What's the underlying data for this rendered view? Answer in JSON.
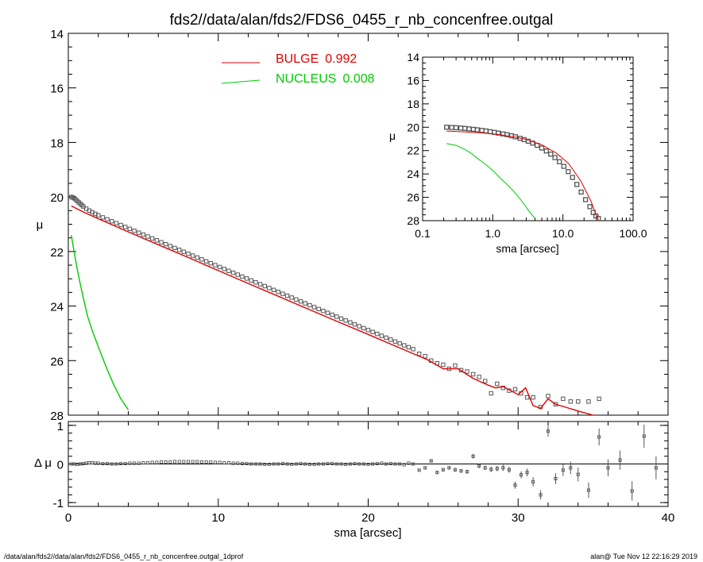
{
  "title": "fds2//data/alan/fds2/FDS6_0455_r_nb_concenfree.outgal",
  "footer_left": "/data/alan/fds2//data/alan/fds2/FDS6_0455_r_nb_concenfree.outgal_1dprof",
  "footer_right": "alan@  Tue Nov 12 22:16:29 2019",
  "colors": {
    "data": "#555555",
    "bulge": "#e00000",
    "nucleus": "#00cc00",
    "axis": "#000000"
  },
  "chart_data": [
    {
      "id": "main-profile",
      "type": "scatter",
      "xlabel": "",
      "ylabel": "μ",
      "xlim": [
        0,
        40
      ],
      "ylim": [
        28,
        14
      ],
      "xticks": [
        0,
        10,
        20,
        30,
        40
      ],
      "xtick_labels_shown": false,
      "yticks": [
        14,
        16,
        18,
        20,
        22,
        24,
        26,
        28
      ],
      "ytick_labels": [
        "14",
        "16",
        "18",
        "20",
        "22",
        "24",
        "26",
        "28"
      ],
      "legend": {
        "placement": "top-center",
        "entries": [
          {
            "name": "BULGE",
            "value": "0.992",
            "color": "#e00000"
          },
          {
            "name": "NUCLEUS",
            "value": "0.008",
            "color": "#00cc00"
          }
        ]
      },
      "series": [
        {
          "name": "data",
          "kind": "points",
          "x": [
            0.2,
            0.3,
            0.4,
            0.5,
            0.6,
            0.7,
            0.8,
            0.9,
            1.0,
            1.2,
            1.4,
            1.6,
            1.8,
            2.0,
            2.3,
            2.6,
            2.9,
            3.2,
            3.5,
            3.8,
            4.1,
            4.4,
            4.7,
            5.0,
            5.3,
            5.6,
            5.9,
            6.2,
            6.5,
            6.8,
            7.1,
            7.4,
            7.7,
            8.0,
            8.3,
            8.6,
            8.9,
            9.2,
            9.5,
            9.8,
            10.1,
            10.4,
            10.7,
            11.0,
            11.3,
            11.6,
            11.9,
            12.2,
            12.5,
            12.8,
            13.1,
            13.4,
            13.7,
            14.0,
            14.3,
            14.6,
            14.9,
            15.2,
            15.5,
            15.8,
            16.1,
            16.4,
            16.7,
            17.0,
            17.3,
            17.6,
            17.9,
            18.2,
            18.5,
            18.8,
            19.1,
            19.4,
            19.7,
            20.0,
            20.3,
            20.6,
            20.9,
            21.2,
            21.5,
            21.8,
            22.1,
            22.4,
            22.7,
            23.0,
            23.4,
            23.8,
            24.2,
            24.6,
            25.0,
            25.4,
            25.8,
            26.2,
            26.6,
            27.0,
            27.4,
            27.8,
            28.2,
            28.6,
            29.0,
            29.4,
            29.8,
            30.2,
            30.6,
            31.0,
            31.5,
            32.0,
            32.5,
            33.0,
            33.5,
            34.0,
            34.7,
            35.4
          ],
          "y": [
            20.0,
            20.02,
            20.05,
            20.1,
            20.15,
            20.2,
            20.25,
            20.3,
            20.35,
            20.43,
            20.5,
            20.56,
            20.62,
            20.67,
            20.75,
            20.82,
            20.89,
            20.96,
            21.03,
            21.1,
            21.17,
            21.24,
            21.31,
            21.38,
            21.45,
            21.52,
            21.59,
            21.66,
            21.73,
            21.8,
            21.87,
            21.94,
            22.01,
            22.08,
            22.15,
            22.22,
            22.29,
            22.36,
            22.43,
            22.5,
            22.57,
            22.64,
            22.71,
            22.78,
            22.85,
            22.92,
            22.99,
            23.06,
            23.13,
            23.2,
            23.27,
            23.34,
            23.41,
            23.48,
            23.55,
            23.62,
            23.69,
            23.76,
            23.83,
            23.9,
            23.97,
            24.04,
            24.11,
            24.18,
            24.25,
            24.32,
            24.39,
            24.46,
            24.53,
            24.6,
            24.67,
            24.74,
            24.81,
            24.88,
            24.95,
            25.02,
            25.09,
            25.16,
            25.23,
            25.3,
            25.37,
            25.44,
            25.51,
            25.58,
            25.75,
            25.84,
            26.0,
            26.1,
            26.15,
            26.3,
            26.18,
            26.35,
            26.4,
            26.5,
            26.6,
            26.75,
            27.2,
            26.85,
            27.0,
            27.1,
            27.05,
            27.2,
            27.35,
            27.35,
            27.7,
            27.3,
            27.6,
            27.4,
            27.5,
            27.5,
            27.5,
            27.4
          ]
        },
        {
          "name": "BULGE",
          "kind": "line",
          "color": "#e00000",
          "x": [
            0.2,
            1,
            2,
            4,
            6,
            8,
            10,
            12,
            14,
            16,
            18,
            20,
            22,
            24,
            25,
            26,
            27,
            28,
            28.5,
            29,
            30,
            30.5,
            31,
            31.5,
            32,
            32.5,
            33,
            34,
            35
          ],
          "y": [
            20.33,
            20.55,
            20.8,
            21.28,
            21.75,
            22.22,
            22.7,
            23.17,
            23.64,
            24.11,
            24.58,
            25.04,
            25.51,
            25.98,
            26.3,
            26.3,
            26.65,
            26.9,
            27.0,
            26.95,
            27.25,
            27.0,
            27.65,
            27.75,
            27.4,
            27.6,
            27.68,
            27.85,
            28.0
          ]
        },
        {
          "name": "NUCLEUS",
          "kind": "line",
          "color": "#00cc00",
          "x": [
            0.2,
            0.4,
            0.6,
            0.8,
            1.0,
            1.3,
            1.6,
            2.0,
            2.5,
            3.0,
            3.5,
            4.0
          ],
          "y": [
            21.4,
            22.05,
            22.65,
            23.2,
            23.7,
            24.4,
            24.9,
            25.5,
            26.2,
            26.85,
            27.4,
            27.8
          ]
        }
      ]
    },
    {
      "id": "inset-logprofile",
      "type": "scatter",
      "xlabel": "sma [arcsec]",
      "ylabel": "μ",
      "xscale": "log",
      "xlim": [
        0.1,
        100
      ],
      "ylim": [
        28,
        14
      ],
      "xticks": [
        0.1,
        1,
        10,
        100
      ],
      "xtick_labels": [
        "0.1",
        "1.0",
        "10.0",
        "100.0"
      ],
      "yticks": [
        14,
        16,
        18,
        20,
        22,
        24,
        26,
        28
      ],
      "ytick_labels": [
        "14",
        "16",
        "18",
        "20",
        "22",
        "24",
        "26",
        "28"
      ],
      "series": [
        {
          "name": "data",
          "kind": "points",
          "x": [
            0.22,
            0.26,
            0.3,
            0.35,
            0.4,
            0.46,
            0.53,
            0.6,
            0.7,
            0.8,
            0.92,
            1.05,
            1.2,
            1.4,
            1.6,
            1.85,
            2.1,
            2.45,
            2.8,
            3.2,
            3.7,
            4.3,
            5.0,
            5.8,
            6.7,
            7.7,
            8.9,
            10.3,
            11.9,
            13.7,
            15.8,
            18.2,
            21.0,
            24.2,
            27.0,
            29.5,
            32.0
          ],
          "y": [
            20.0,
            20.02,
            20.04,
            20.07,
            20.1,
            20.14,
            20.18,
            20.22,
            20.27,
            20.32,
            20.38,
            20.44,
            20.5,
            20.57,
            20.64,
            20.73,
            20.82,
            20.95,
            21.06,
            21.2,
            21.36,
            21.55,
            21.78,
            22.03,
            22.3,
            22.6,
            22.95,
            23.35,
            23.8,
            24.3,
            24.9,
            25.55,
            26.2,
            26.8,
            27.3,
            27.6,
            27.8
          ]
        },
        {
          "name": "BULGE",
          "kind": "line",
          "color": "#e00000",
          "x": [
            0.22,
            0.3,
            0.5,
            0.8,
            1.2,
            2,
            3,
            5,
            8,
            12,
            18,
            25,
            32
          ],
          "y": [
            20.33,
            20.36,
            20.43,
            20.52,
            20.62,
            20.82,
            21.05,
            21.5,
            22.2,
            23.1,
            24.6,
            26.3,
            28.0
          ]
        },
        {
          "name": "NUCLEUS",
          "kind": "line",
          "color": "#00cc00",
          "x": [
            0.22,
            0.3,
            0.4,
            0.5,
            0.6,
            0.8,
            1.0,
            1.3,
            1.6,
            2.0,
            2.5,
            3.0,
            3.5,
            4.0
          ],
          "y": [
            21.4,
            21.55,
            21.9,
            22.25,
            22.65,
            23.2,
            23.7,
            24.4,
            24.9,
            25.5,
            26.2,
            26.85,
            27.4,
            27.8
          ]
        }
      ]
    },
    {
      "id": "residuals",
      "type": "scatter",
      "xlabel": "sma [arcsec]",
      "ylabel": "Δ μ",
      "xlim": [
        0,
        40
      ],
      "ylim": [
        -1.1,
        1.1
      ],
      "xticks": [
        0,
        10,
        20,
        30,
        40
      ],
      "xtick_labels": [
        "0",
        "10",
        "20",
        "30",
        "40"
      ],
      "yticks": [
        -1,
        0,
        1
      ],
      "ytick_labels": [
        "-1",
        "0",
        "1"
      ],
      "zero_line": true,
      "series": [
        {
          "name": "residual",
          "kind": "points_with_errorbars",
          "x": [
            0.2,
            0.4,
            0.6,
            0.8,
            1.0,
            1.2,
            1.4,
            1.6,
            1.8,
            2.0,
            2.3,
            2.6,
            2.9,
            3.2,
            3.5,
            3.8,
            4.1,
            4.4,
            4.7,
            5.0,
            5.3,
            5.6,
            5.9,
            6.2,
            6.5,
            6.8,
            7.1,
            7.4,
            7.7,
            8.0,
            8.3,
            8.6,
            8.9,
            9.2,
            9.5,
            9.8,
            10.1,
            10.4,
            10.7,
            11.0,
            11.3,
            11.6,
            11.9,
            12.2,
            12.5,
            12.8,
            13.1,
            13.4,
            13.7,
            14.0,
            14.3,
            14.6,
            14.9,
            15.2,
            15.5,
            15.8,
            16.1,
            16.4,
            16.7,
            17.0,
            17.3,
            17.6,
            17.9,
            18.2,
            18.5,
            18.8,
            19.1,
            19.4,
            19.7,
            20.0,
            20.3,
            20.6,
            20.9,
            21.2,
            21.5,
            21.8,
            22.1,
            22.4,
            22.7,
            23.0,
            23.4,
            23.8,
            24.2,
            24.6,
            25.0,
            25.4,
            25.8,
            26.2,
            26.6,
            27.0,
            27.4,
            27.8,
            28.2,
            28.6,
            29.0,
            29.4,
            29.8,
            30.2,
            30.6,
            31.0,
            31.5,
            32.0,
            32.5,
            33.0,
            33.5,
            34.0,
            34.7,
            35.4,
            36.0,
            36.8,
            37.6,
            38.4,
            39.2
          ],
          "y": [
            0.0,
            0.0,
            -0.01,
            0.0,
            0.01,
            0.02,
            0.03,
            0.03,
            0.02,
            0.02,
            0.01,
            0.01,
            0.0,
            0.0,
            0.01,
            0.01,
            0.02,
            0.02,
            0.02,
            0.03,
            0.03,
            0.04,
            0.04,
            0.05,
            0.05,
            0.05,
            0.06,
            0.06,
            0.06,
            0.06,
            0.06,
            0.06,
            0.05,
            0.05,
            0.05,
            0.04,
            0.04,
            0.03,
            0.03,
            0.02,
            0.02,
            0.01,
            0.01,
            0.0,
            0.0,
            0.0,
            -0.01,
            -0.01,
            0.0,
            0.0,
            0.01,
            0.0,
            -0.01,
            0.0,
            0.01,
            0.0,
            -0.01,
            -0.01,
            0.0,
            0.0,
            0.01,
            0.01,
            0.0,
            0.0,
            -0.01,
            0.0,
            0.01,
            0.0,
            0.0,
            -0.01,
            0.0,
            0.01,
            0.02,
            0.0,
            0.01,
            0.0,
            0.0,
            -0.02,
            0.02,
            0.0,
            -0.16,
            -0.1,
            0.08,
            -0.22,
            -0.15,
            -0.1,
            -0.15,
            -0.18,
            -0.2,
            0.2,
            -0.05,
            -0.1,
            -0.14,
            -0.12,
            -0.1,
            -0.15,
            -0.55,
            -0.28,
            -0.22,
            -0.46,
            -0.8,
            0.85,
            -0.38,
            -0.16,
            -0.1,
            -0.27,
            -0.68,
            0.7,
            -0.1,
            0.1,
            -0.7,
            0.72,
            -0.1
          ],
          "err": [
            0.0,
            0.0,
            0.0,
            0.0,
            0.0,
            0.0,
            0.0,
            0.0,
            0.0,
            0.0,
            0.0,
            0.0,
            0.0,
            0.0,
            0.0,
            0.0,
            0.0,
            0.0,
            0.0,
            0.0,
            0.0,
            0.0,
            0.0,
            0.0,
            0.0,
            0.0,
            0.0,
            0.0,
            0.0,
            0.0,
            0.0,
            0.0,
            0.0,
            0.0,
            0.0,
            0.0,
            0.0,
            0.0,
            0.0,
            0.0,
            0.0,
            0.0,
            0.0,
            0.0,
            0.0,
            0.0,
            0.0,
            0.0,
            0.0,
            0.0,
            0.0,
            0.0,
            0.0,
            0.0,
            0.0,
            0.0,
            0.0,
            0.0,
            0.0,
            0.0,
            0.0,
            0.0,
            0.0,
            0.0,
            0.0,
            0.0,
            0.0,
            0.0,
            0.0,
            0.0,
            0.0,
            0.0,
            0.0,
            0.0,
            0.0,
            0.0,
            0.0,
            0.0,
            0.0,
            0.0,
            0.02,
            0.03,
            0.03,
            0.04,
            0.04,
            0.04,
            0.05,
            0.05,
            0.05,
            0.06,
            0.06,
            0.06,
            0.07,
            0.07,
            0.08,
            0.08,
            0.09,
            0.09,
            0.1,
            0.12,
            0.12,
            0.14,
            0.14,
            0.15,
            0.16,
            0.18,
            0.2,
            0.22,
            0.22,
            0.25,
            0.25,
            0.3,
            0.3
          ]
        }
      ]
    }
  ]
}
